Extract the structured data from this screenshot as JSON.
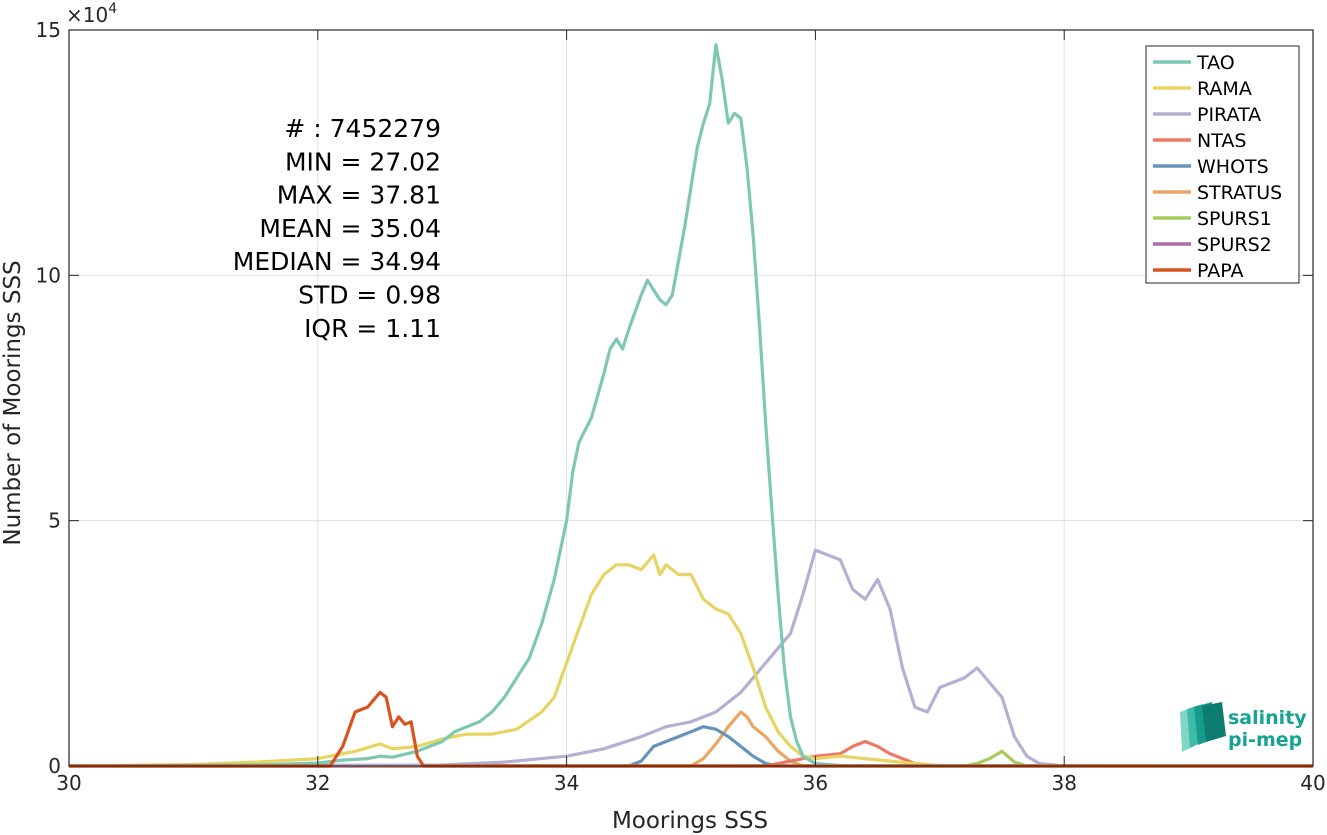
{
  "chart_data": {
    "type": "line",
    "xlabel": "Moorings SSS",
    "ylabel": "Number of Moorings SSS",
    "xlim": [
      30,
      40
    ],
    "ylim": [
      0,
      150000
    ],
    "y_scale_label": "×10",
    "y_scale_exponent": "4",
    "x_ticks": [
      "30",
      "32",
      "34",
      "36",
      "38",
      "40"
    ],
    "y_ticks": [
      "0",
      "5",
      "10",
      "15"
    ],
    "grid": true,
    "legend_position": "top-right",
    "stats": [
      "# : 7452279",
      "MIN = 27.02",
      "MAX =  37.81",
      "MEAN = 35.04",
      "MEDIAN = 34.94",
      "STD = 0.98",
      "IQR = 1.11"
    ],
    "logo": [
      "salinity",
      "pi-mep"
    ],
    "series": [
      {
        "name": "TAO",
        "color": "#7ec8b3",
        "points": [
          [
            30,
            0
          ],
          [
            31.5,
            200
          ],
          [
            32.0,
            600
          ],
          [
            32.2,
            1200
          ],
          [
            32.4,
            1500
          ],
          [
            32.5,
            2000
          ],
          [
            32.6,
            1800
          ],
          [
            32.8,
            3000
          ],
          [
            33.0,
            5000
          ],
          [
            33.1,
            7000
          ],
          [
            33.2,
            8000
          ],
          [
            33.3,
            9000
          ],
          [
            33.4,
            11000
          ],
          [
            33.5,
            14000
          ],
          [
            33.6,
            18000
          ],
          [
            33.7,
            22000
          ],
          [
            33.8,
            29000
          ],
          [
            33.9,
            38000
          ],
          [
            34.0,
            50000
          ],
          [
            34.05,
            60000
          ],
          [
            34.1,
            66000
          ],
          [
            34.2,
            71000
          ],
          [
            34.3,
            80000
          ],
          [
            34.35,
            85000
          ],
          [
            34.4,
            87000
          ],
          [
            34.45,
            85000
          ],
          [
            34.5,
            89000
          ],
          [
            34.6,
            96000
          ],
          [
            34.65,
            99000
          ],
          [
            34.7,
            97000
          ],
          [
            34.75,
            95000
          ],
          [
            34.8,
            94000
          ],
          [
            34.85,
            96000
          ],
          [
            34.9,
            103000
          ],
          [
            34.95,
            110000
          ],
          [
            35.0,
            118000
          ],
          [
            35.05,
            126000
          ],
          [
            35.1,
            131000
          ],
          [
            35.15,
            135000
          ],
          [
            35.2,
            147000
          ],
          [
            35.25,
            140000
          ],
          [
            35.3,
            131000
          ],
          [
            35.35,
            133000
          ],
          [
            35.4,
            132000
          ],
          [
            35.45,
            122000
          ],
          [
            35.5,
            108000
          ],
          [
            35.55,
            90000
          ],
          [
            35.6,
            70000
          ],
          [
            35.65,
            52000
          ],
          [
            35.7,
            35000
          ],
          [
            35.75,
            20000
          ],
          [
            35.8,
            10000
          ],
          [
            35.85,
            5000
          ],
          [
            35.9,
            2000
          ],
          [
            36.0,
            500
          ],
          [
            36.2,
            100
          ],
          [
            40,
            0
          ]
        ]
      },
      {
        "name": "RAMA",
        "color": "#e8d462",
        "points": [
          [
            30,
            0
          ],
          [
            31.0,
            300
          ],
          [
            31.5,
            800
          ],
          [
            32.0,
            1500
          ],
          [
            32.3,
            3000
          ],
          [
            32.5,
            4500
          ],
          [
            32.6,
            3500
          ],
          [
            32.8,
            4000
          ],
          [
            33.0,
            5500
          ],
          [
            33.2,
            6500
          ],
          [
            33.4,
            6500
          ],
          [
            33.6,
            7500
          ],
          [
            33.8,
            11000
          ],
          [
            33.9,
            14000
          ],
          [
            34.0,
            21000
          ],
          [
            34.1,
            28000
          ],
          [
            34.2,
            35000
          ],
          [
            34.3,
            39000
          ],
          [
            34.4,
            41000
          ],
          [
            34.5,
            41000
          ],
          [
            34.6,
            40000
          ],
          [
            34.7,
            43000
          ],
          [
            34.75,
            39000
          ],
          [
            34.8,
            41000
          ],
          [
            34.9,
            39000
          ],
          [
            35.0,
            39000
          ],
          [
            35.1,
            34000
          ],
          [
            35.2,
            32000
          ],
          [
            35.3,
            31000
          ],
          [
            35.4,
            27000
          ],
          [
            35.5,
            20000
          ],
          [
            35.6,
            12000
          ],
          [
            35.7,
            7000
          ],
          [
            35.8,
            4000
          ],
          [
            35.9,
            2000
          ],
          [
            36.0,
            1500
          ],
          [
            36.2,
            2000
          ],
          [
            36.4,
            1500
          ],
          [
            36.6,
            1000
          ],
          [
            36.8,
            500
          ],
          [
            37.0,
            0
          ],
          [
            40,
            0
          ]
        ]
      },
      {
        "name": "PIRATA",
        "color": "#b3b0d4",
        "points": [
          [
            30,
            0
          ],
          [
            33.0,
            200
          ],
          [
            33.5,
            800
          ],
          [
            34.0,
            2000
          ],
          [
            34.3,
            3500
          ],
          [
            34.6,
            6000
          ],
          [
            34.8,
            8000
          ],
          [
            35.0,
            9000
          ],
          [
            35.2,
            11000
          ],
          [
            35.4,
            15000
          ],
          [
            35.6,
            21000
          ],
          [
            35.8,
            27000
          ],
          [
            35.9,
            35000
          ],
          [
            36.0,
            44000
          ],
          [
            36.1,
            43000
          ],
          [
            36.2,
            42000
          ],
          [
            36.3,
            36000
          ],
          [
            36.4,
            34000
          ],
          [
            36.5,
            38000
          ],
          [
            36.6,
            32000
          ],
          [
            36.7,
            20000
          ],
          [
            36.8,
            12000
          ],
          [
            36.9,
            11000
          ],
          [
            37.0,
            16000
          ],
          [
            37.1,
            17000
          ],
          [
            37.2,
            18000
          ],
          [
            37.3,
            20000
          ],
          [
            37.4,
            17000
          ],
          [
            37.5,
            14000
          ],
          [
            37.6,
            6000
          ],
          [
            37.7,
            2000
          ],
          [
            37.8,
            500
          ],
          [
            38.0,
            0
          ],
          [
            40,
            0
          ]
        ]
      },
      {
        "name": "NTAS",
        "color": "#eb7a64",
        "points": [
          [
            30,
            0
          ],
          [
            35.6,
            0
          ],
          [
            35.8,
            1000
          ],
          [
            36.0,
            2000
          ],
          [
            36.2,
            2500
          ],
          [
            36.3,
            4000
          ],
          [
            36.4,
            5000
          ],
          [
            36.5,
            4000
          ],
          [
            36.6,
            2500
          ],
          [
            36.7,
            1500
          ],
          [
            36.8,
            500
          ],
          [
            37.0,
            0
          ],
          [
            40,
            0
          ]
        ]
      },
      {
        "name": "WHOTS",
        "color": "#6494bc",
        "points": [
          [
            30,
            0
          ],
          [
            34.5,
            0
          ],
          [
            34.6,
            1000
          ],
          [
            34.7,
            4000
          ],
          [
            34.8,
            5000
          ],
          [
            34.9,
            6000
          ],
          [
            35.0,
            7000
          ],
          [
            35.1,
            8000
          ],
          [
            35.2,
            7500
          ],
          [
            35.3,
            6000
          ],
          [
            35.4,
            4000
          ],
          [
            35.5,
            2000
          ],
          [
            35.6,
            500
          ],
          [
            35.7,
            0
          ],
          [
            40,
            0
          ]
        ]
      },
      {
        "name": "STRATUS",
        "color": "#eba564",
        "points": [
          [
            30,
            0
          ],
          [
            35.0,
            0
          ],
          [
            35.1,
            1500
          ],
          [
            35.2,
            4500
          ],
          [
            35.3,
            8000
          ],
          [
            35.4,
            11000
          ],
          [
            35.45,
            10000
          ],
          [
            35.5,
            8000
          ],
          [
            35.6,
            6000
          ],
          [
            35.7,
            3000
          ],
          [
            35.8,
            1000
          ],
          [
            35.9,
            0
          ],
          [
            40,
            0
          ]
        ]
      },
      {
        "name": "SPURS1",
        "color": "#a5cc5a",
        "points": [
          [
            30,
            0
          ],
          [
            37.2,
            0
          ],
          [
            37.3,
            500
          ],
          [
            37.4,
            1500
          ],
          [
            37.5,
            3000
          ],
          [
            37.6,
            800
          ],
          [
            37.7,
            0
          ],
          [
            40,
            0
          ]
        ]
      },
      {
        "name": "SPURS2",
        "color": "#b06aa8",
        "points": [
          [
            30,
            0
          ],
          [
            40,
            0
          ]
        ]
      },
      {
        "name": "PAPA",
        "color": "#d9531e",
        "points": [
          [
            30,
            0
          ],
          [
            32.1,
            0
          ],
          [
            32.2,
            4000
          ],
          [
            32.3,
            11000
          ],
          [
            32.4,
            12000
          ],
          [
            32.5,
            15000
          ],
          [
            32.55,
            14000
          ],
          [
            32.6,
            8000
          ],
          [
            32.65,
            10000
          ],
          [
            32.7,
            8500
          ],
          [
            32.75,
            9000
          ],
          [
            32.8,
            2000
          ],
          [
            32.85,
            0
          ],
          [
            40,
            0
          ]
        ]
      }
    ]
  }
}
